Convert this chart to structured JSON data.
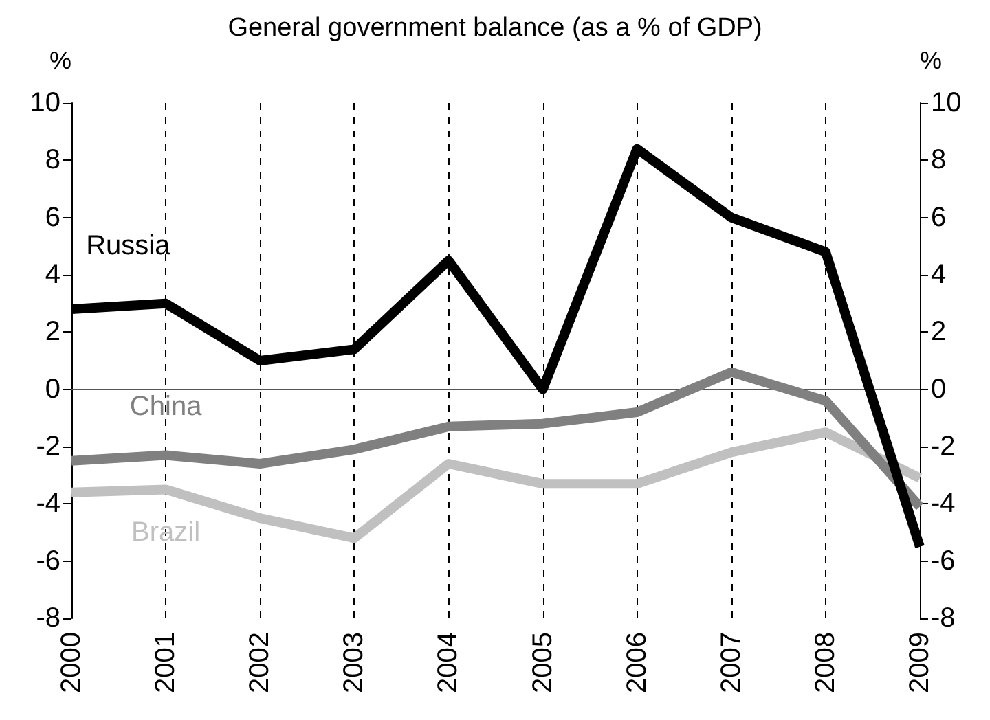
{
  "chart_data": {
    "type": "line",
    "title": "General government balance (as a % of GDP)",
    "ylabel": "%",
    "y2label": "%",
    "categories": [
      "2000",
      "2001",
      "2002",
      "2003",
      "2004",
      "2005",
      "2006",
      "2007",
      "2008",
      "2009"
    ],
    "series": [
      {
        "name": "Russia",
        "color": "#000000",
        "values": [
          2.8,
          3.0,
          1.0,
          1.4,
          4.5,
          0.0,
          8.4,
          6.0,
          4.8,
          -5.5
        ]
      },
      {
        "name": "China",
        "color": "#808080",
        "values": [
          -2.5,
          -2.3,
          -2.6,
          -2.1,
          -1.3,
          -1.2,
          -0.8,
          0.6,
          -0.4,
          -4.1
        ]
      },
      {
        "name": "Brazil",
        "color": "#c0c0c0",
        "values": [
          -3.6,
          -3.5,
          -4.5,
          -5.2,
          -2.6,
          -3.3,
          -3.3,
          -2.2,
          -1.5,
          -3.1
        ]
      }
    ],
    "ylim": [
      -8,
      10
    ],
    "yticks": [
      -8,
      -6,
      -4,
      -2,
      0,
      2,
      4,
      6,
      8,
      10
    ],
    "y2lim": [
      -8,
      10
    ],
    "y2ticks": [
      -8,
      -6,
      -4,
      -2,
      0,
      2,
      4,
      6,
      8,
      10
    ],
    "ref_lines": [
      {
        "axis": "y",
        "value": 0,
        "color": "#555555",
        "line_style": "solid"
      }
    ],
    "grid": "x",
    "legend": false,
    "marker": "none",
    "line_style": "solid"
  }
}
